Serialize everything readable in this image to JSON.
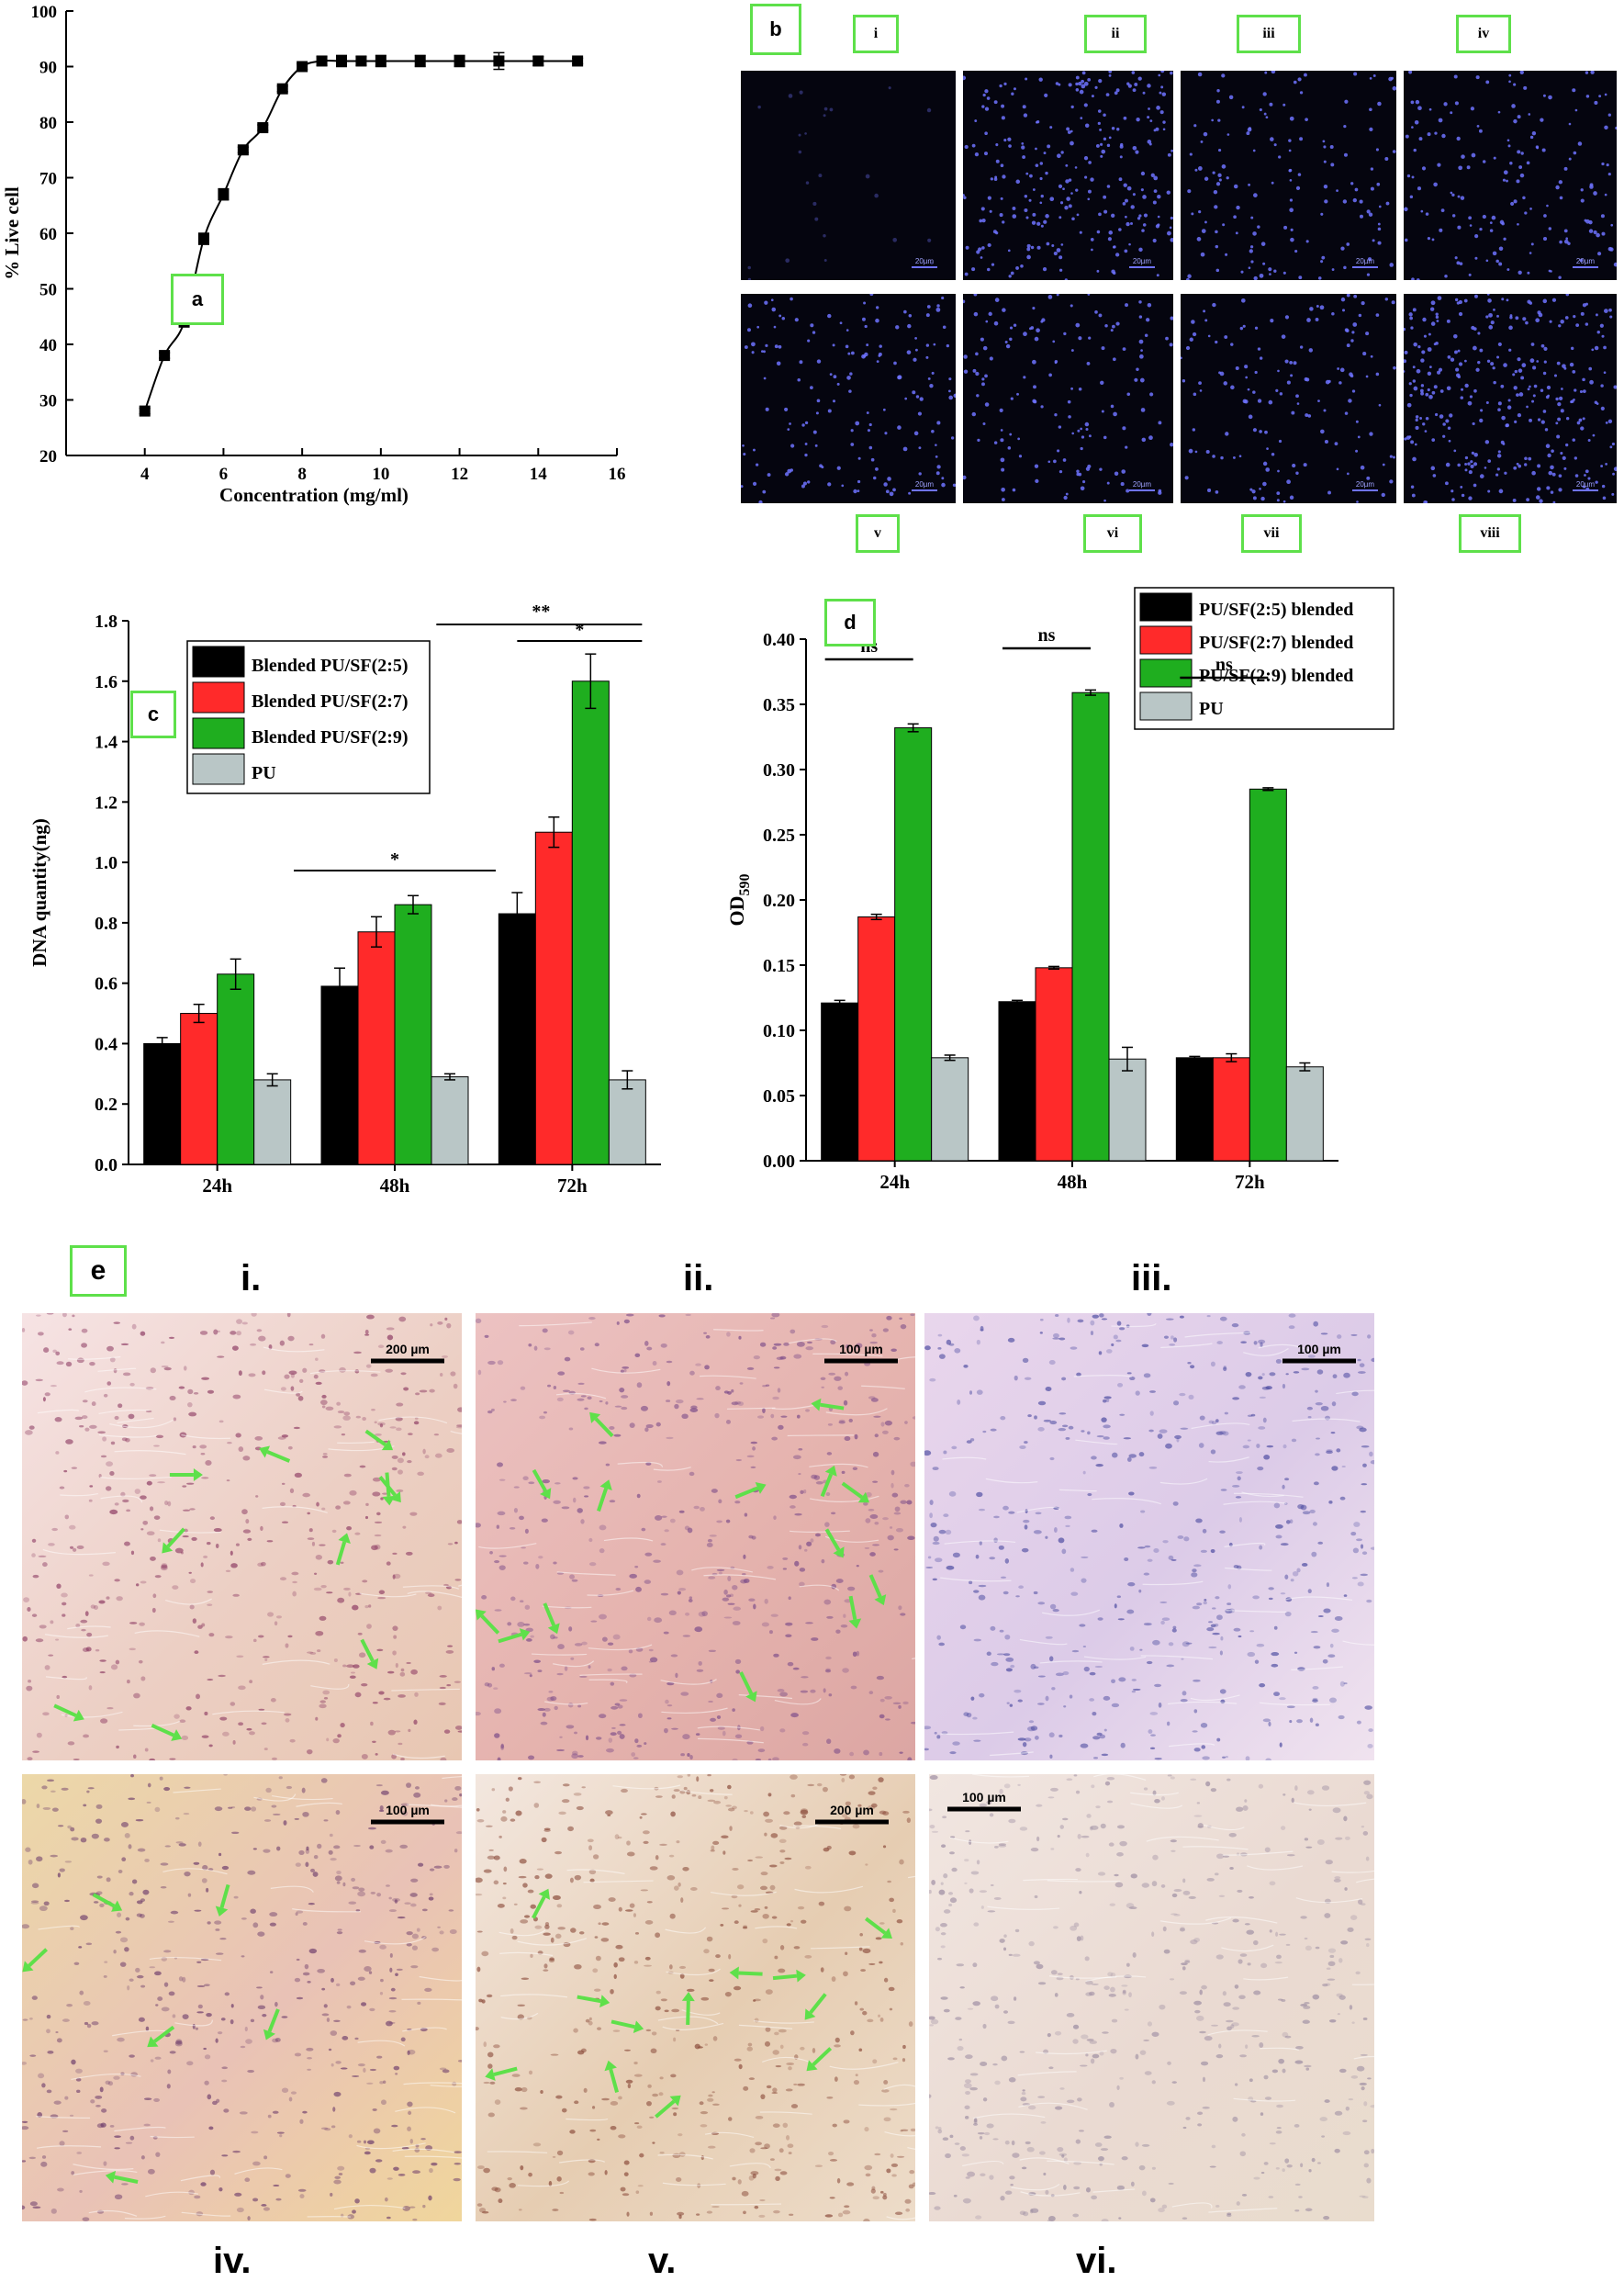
{
  "panel_a": {
    "tag": "a",
    "chart_data": {
      "type": "line",
      "xlabel": "Concentration (mg/ml)",
      "ylabel": "% Live cell",
      "xlim": [
        2,
        16
      ],
      "ylim": [
        20,
        100
      ],
      "xticks": [
        "4",
        "6",
        "8",
        "10",
        "12",
        "14",
        "16"
      ],
      "yticks": [
        "20",
        "30",
        "40",
        "50",
        "60",
        "70",
        "80",
        "90",
        "100"
      ],
      "x": [
        4,
        4.5,
        5,
        5.5,
        6,
        6.5,
        7,
        7.5,
        8,
        8.5,
        9,
        9.5,
        10,
        11,
        12,
        13,
        14,
        15
      ],
      "y": [
        28,
        38,
        44,
        59,
        67,
        75,
        79,
        86,
        90,
        91,
        91,
        91,
        91,
        91,
        91,
        91,
        91,
        91
      ],
      "err": [
        0.5,
        0.5,
        0.5,
        1,
        1,
        0.5,
        0.5,
        0.5,
        0.5,
        0.8,
        1,
        0.8,
        1,
        1,
        1,
        1.5,
        0.8,
        0.5
      ],
      "color": "#000000"
    }
  },
  "panel_b": {
    "tag": "b",
    "labels_top": [
      "i",
      "ii",
      "iii",
      "iv"
    ],
    "labels_bottom": [
      "v",
      "vi",
      "vii",
      "viii"
    ],
    "scale_label": "20µm",
    "nuclei_color": "#6f73ff"
  },
  "panel_c": {
    "tag": "c",
    "chart_data": {
      "type": "bar",
      "categories": [
        "24h",
        "48h",
        "72h"
      ],
      "ylabel": "DNA quantity(ng)",
      "ylim": [
        0,
        1.8
      ],
      "yticks": [
        "0.0",
        "0.2",
        "0.4",
        "0.6",
        "0.8",
        "1.0",
        "1.2",
        "1.4",
        "1.6",
        "1.8"
      ],
      "series": [
        {
          "name": "Blended PU/SF(2:5)",
          "values": [
            0.4,
            0.59,
            0.83
          ],
          "err": [
            0.02,
            0.06,
            0.07
          ],
          "color": "#000000"
        },
        {
          "name": "Blended PU/SF(2:7)",
          "values": [
            0.5,
            0.77,
            1.1
          ],
          "err": [
            0.03,
            0.05,
            0.05
          ],
          "color": "#ff2a2a"
        },
        {
          "name": "Blended PU/SF(2:9)",
          "values": [
            0.63,
            0.86,
            1.6
          ],
          "err": [
            0.05,
            0.03,
            0.09
          ],
          "color": "#1fae1f"
        },
        {
          "name": "PU",
          "values": [
            0.28,
            0.29,
            0.28
          ],
          "err": [
            0.02,
            0.01,
            0.03
          ],
          "color": "#b9c6c6"
        }
      ],
      "annotations": [
        {
          "text": "*",
          "group": "48h"
        },
        {
          "text": "**",
          "group": "72h"
        },
        {
          "text": "*",
          "group": "72h"
        }
      ]
    }
  },
  "panel_d": {
    "tag": "d",
    "chart_data": {
      "type": "bar",
      "categories": [
        "24h",
        "48h",
        "72h"
      ],
      "ylabel": "OD590",
      "ylabel_main": "OD",
      "ylabel_sub": "590",
      "ylim": [
        0,
        0.4
      ],
      "yticks": [
        "0.00",
        "0.05",
        "0.10",
        "0.15",
        "0.20",
        "0.25",
        "0.30",
        "0.35",
        "0.40"
      ],
      "series": [
        {
          "name": "PU/SF(2:5) blended",
          "values": [
            0.121,
            0.122,
            0.079
          ],
          "err": [
            0.002,
            0.001,
            0.001
          ],
          "color": "#000000"
        },
        {
          "name": "PU/SF(2:7) blended",
          "values": [
            0.187,
            0.148,
            0.079
          ],
          "err": [
            0.002,
            0.001,
            0.003
          ],
          "color": "#ff2a2a"
        },
        {
          "name": "PU/SF(2:9) blended",
          "values": [
            0.332,
            0.359,
            0.285
          ],
          "err": [
            0.003,
            0.002,
            0.001
          ],
          "color": "#1fae1f"
        },
        {
          "name": "PU",
          "values": [
            0.079,
            0.078,
            0.072
          ],
          "err": [
            0.002,
            0.009,
            0.003
          ],
          "color": "#b9c6c6"
        }
      ],
      "annotations": [
        {
          "text": "ns",
          "group": "24h"
        },
        {
          "text": "ns",
          "group": "48h"
        },
        {
          "text": "ns",
          "group": "72h"
        }
      ]
    }
  },
  "panel_e": {
    "tag": "e",
    "labels": [
      "i.",
      "ii.",
      "iii.",
      "iv.",
      "v.",
      "vi."
    ],
    "scale_labels": [
      "200 µm",
      "100 µm",
      "100 µm",
      "100 µm",
      "200 µm",
      "100 µm"
    ],
    "arrow_color": "#5ee04a"
  }
}
